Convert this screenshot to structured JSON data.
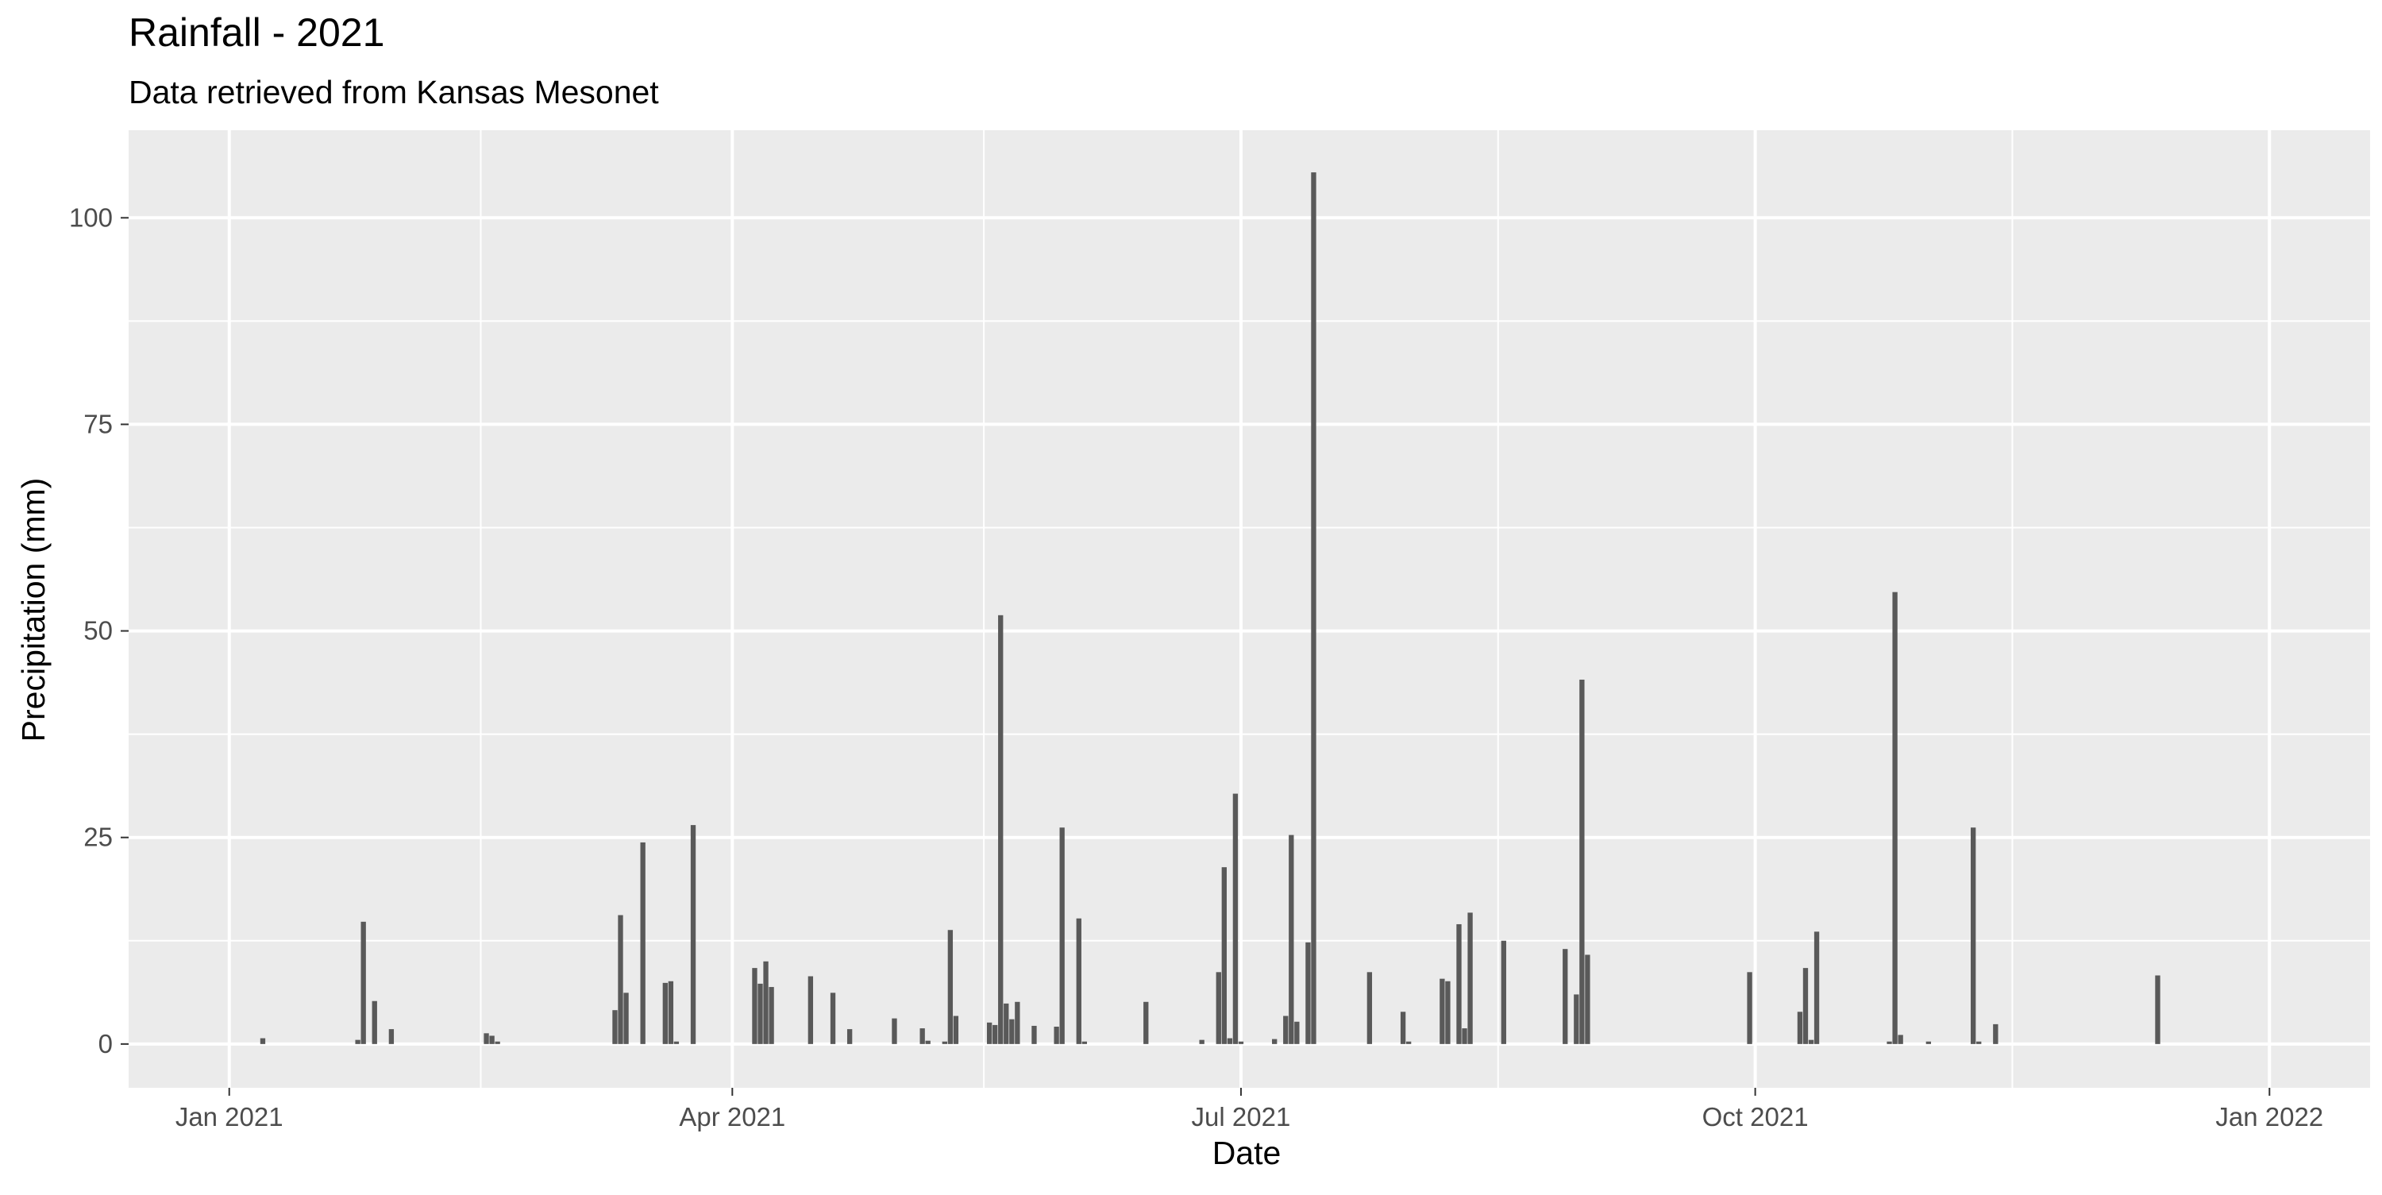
{
  "chart_data": {
    "type": "bar",
    "title": "Rainfall -  2021",
    "subtitle": "Data retrieved from Kansas Mesonet",
    "xlabel": "Date",
    "ylabel": "Precipitation (mm)",
    "x_tick_labels": [
      "Jan 2021",
      "Apr 2021",
      "Jul 2021",
      "Oct 2021",
      "Jan 2022"
    ],
    "x_ticks": [
      "2021-01-01",
      "2021-04-01",
      "2021-07-01",
      "2021-10-01",
      "2022-01-01"
    ],
    "x_minor_ticks": [
      "2021-02-15",
      "2021-05-16",
      "2021-08-16",
      "2021-11-16"
    ],
    "xlim": [
      "2020-12-14",
      "2022-01-19"
    ],
    "y_tick_labels": [
      "0",
      "25",
      "50",
      "75",
      "100"
    ],
    "y_ticks": [
      0,
      25,
      50,
      75,
      100
    ],
    "y_minor_ticks": [
      12.5,
      37.5,
      62.5,
      87.5
    ],
    "ylim": [
      -5.3,
      110.6
    ],
    "grid": true,
    "bar_color": "#595959",
    "panel_background": "#ebebeb",
    "grid_color": "#ffffff",
    "dates": [
      "2021-01-07",
      "2021-01-24",
      "2021-01-25",
      "2021-01-27",
      "2021-01-30",
      "2021-02-16",
      "2021-02-17",
      "2021-02-18",
      "2021-03-11",
      "2021-03-12",
      "2021-03-13",
      "2021-03-16",
      "2021-03-20",
      "2021-03-21",
      "2021-03-22",
      "2021-03-25",
      "2021-04-05",
      "2021-04-06",
      "2021-04-07",
      "2021-04-08",
      "2021-04-15",
      "2021-04-19",
      "2021-04-22",
      "2021-04-30",
      "2021-05-05",
      "2021-05-06",
      "2021-05-09",
      "2021-05-10",
      "2021-05-11",
      "2021-05-17",
      "2021-05-18",
      "2021-05-19",
      "2021-05-20",
      "2021-05-21",
      "2021-05-22",
      "2021-05-25",
      "2021-05-29",
      "2021-05-30",
      "2021-06-02",
      "2021-06-03",
      "2021-06-14",
      "2021-06-24",
      "2021-06-27",
      "2021-06-28",
      "2021-06-29",
      "2021-06-30",
      "2021-07-01",
      "2021-07-07",
      "2021-07-09",
      "2021-07-10",
      "2021-07-11",
      "2021-07-13",
      "2021-07-14",
      "2021-07-24",
      "2021-07-30",
      "2021-07-31",
      "2021-08-06",
      "2021-08-07",
      "2021-08-09",
      "2021-08-10",
      "2021-08-11",
      "2021-08-17",
      "2021-08-28",
      "2021-08-30",
      "2021-08-31",
      "2021-09-01",
      "2021-09-30",
      "2021-10-09",
      "2021-10-10",
      "2021-10-11",
      "2021-10-12",
      "2021-10-25",
      "2021-10-26",
      "2021-10-27",
      "2021-11-01",
      "2021-11-09",
      "2021-11-10",
      "2021-11-13",
      "2021-12-12"
    ],
    "values": [
      0.7,
      0.5,
      14.8,
      5.2,
      1.8,
      1.3,
      1.0,
      0.3,
      4.1,
      15.6,
      6.2,
      24.4,
      7.4,
      7.6,
      0.3,
      26.5,
      9.2,
      7.3,
      10.0,
      6.9,
      8.2,
      6.2,
      1.8,
      3.1,
      1.9,
      0.4,
      0.3,
      13.8,
      3.4,
      2.6,
      2.3,
      51.9,
      4.9,
      3.0,
      5.1,
      2.2,
      2.1,
      26.2,
      15.2,
      0.3,
      5.1,
      0.5,
      8.7,
      21.4,
      0.7,
      30.3,
      0.3,
      0.6,
      3.4,
      25.3,
      2.7,
      12.3,
      105.5,
      8.7,
      3.9,
      0.3,
      7.9,
      7.6,
      14.5,
      1.9,
      15.9,
      12.5,
      11.5,
      6.0,
      44.1,
      10.8,
      8.7,
      3.9,
      9.2,
      0.5,
      13.6,
      0.3,
      54.7,
      1.1,
      0.3,
      26.2,
      0.3,
      2.4,
      8.3
    ]
  }
}
